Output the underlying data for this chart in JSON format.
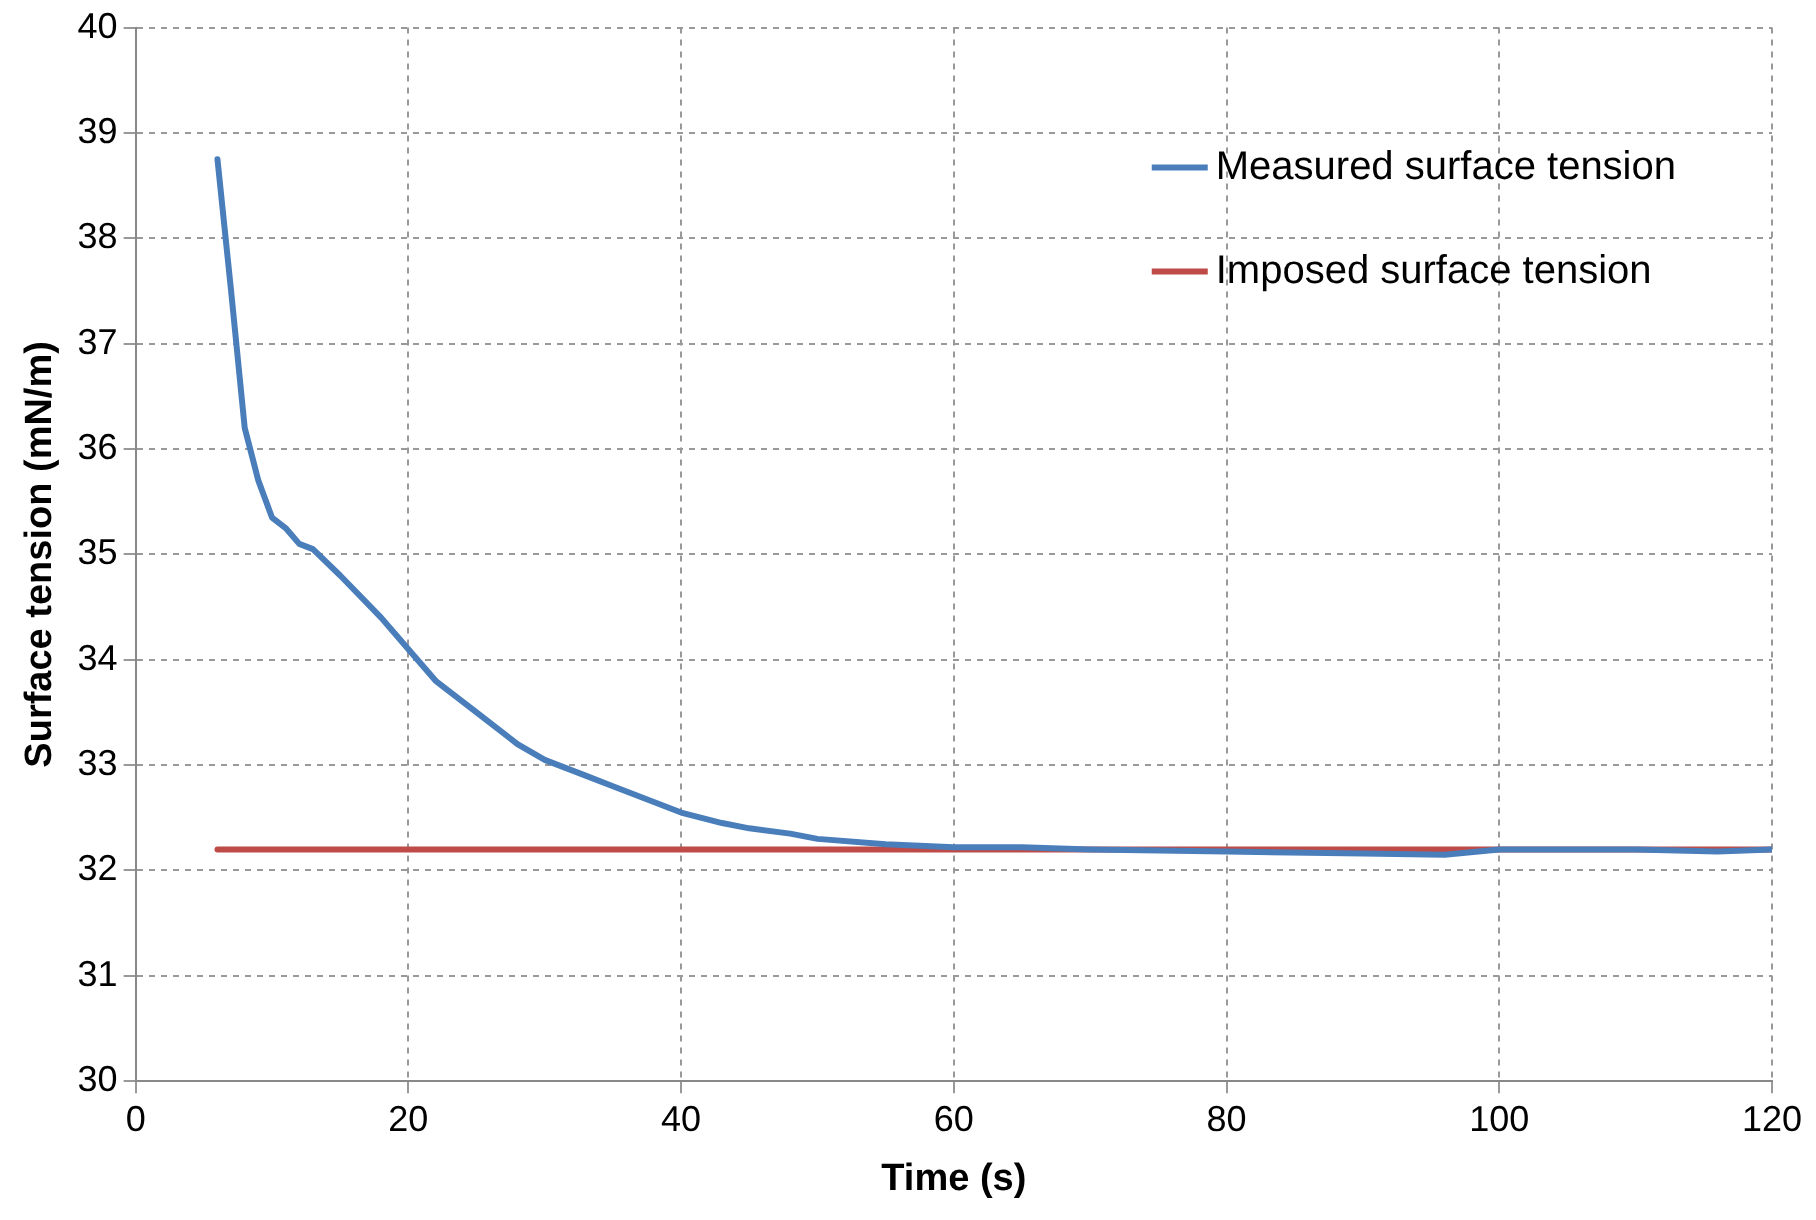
{
  "chart_data": {
    "type": "line",
    "xlabel": "Time (s)",
    "ylabel": "Surface tension (mN/m)",
    "xlim": [
      0,
      120
    ],
    "xticks": [
      0,
      20,
      40,
      60,
      80,
      100,
      120
    ],
    "ylim": [
      30,
      40
    ],
    "yticks": [
      30,
      31,
      32,
      33,
      34,
      35,
      36,
      37,
      38,
      39,
      40
    ],
    "grid": true,
    "legend": "top right",
    "marker": "none",
    "line_style": "solid",
    "series": [
      {
        "name": "Measured surface tension",
        "color": "#4a7ebb",
        "x": [
          6,
          7,
          8,
          9,
          10,
          11,
          12,
          13,
          15,
          18,
          20,
          22,
          25,
          28,
          30,
          33,
          35,
          38,
          40,
          43,
          45,
          48,
          50,
          55,
          60,
          65,
          70,
          80,
          90,
          96,
          100,
          110,
          116,
          120
        ],
        "values": [
          38.75,
          37.5,
          36.2,
          35.7,
          35.35,
          35.25,
          35.1,
          35.05,
          34.8,
          34.4,
          34.1,
          33.8,
          33.5,
          33.2,
          33.05,
          32.9,
          32.8,
          32.65,
          32.55,
          32.45,
          32.4,
          32.35,
          32.3,
          32.25,
          32.22,
          32.22,
          32.2,
          32.18,
          32.16,
          32.15,
          32.2,
          32.2,
          32.18,
          32.2
        ]
      },
      {
        "name": "Imposed surface tension",
        "color": "#be4b48",
        "x": [
          6,
          120
        ],
        "values": [
          32.2,
          32.2
        ]
      }
    ]
  }
}
